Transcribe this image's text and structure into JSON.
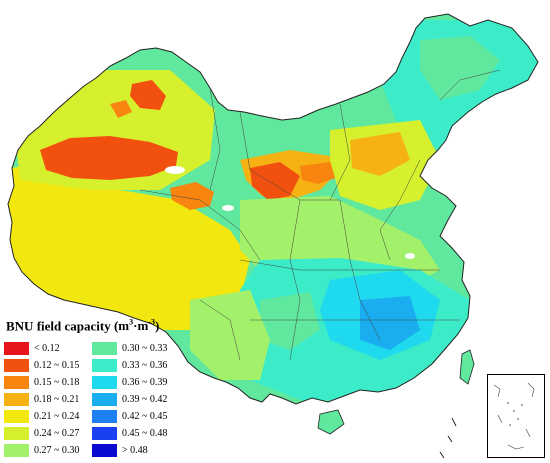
{
  "legend": {
    "title": "BNU field capacity",
    "unit_base": "(m",
    "unit_sup1": "3",
    "unit_mid": "·m",
    "unit_sup2": "-3",
    "unit_end": ")",
    "classes": [
      {
        "label": "< 0.12",
        "color": "#e8141b"
      },
      {
        "label": "0.12 ~ 0.15",
        "color": "#f2500f"
      },
      {
        "label": "0.15 ~ 0.18",
        "color": "#f7850f"
      },
      {
        "label": "0.18 ~ 0.21",
        "color": "#f5b212"
      },
      {
        "label": "0.21 ~ 0.24",
        "color": "#f2e80f"
      },
      {
        "label": "0.24 ~ 0.27",
        "color": "#d7f02e"
      },
      {
        "label": "0.27 ~ 0.30",
        "color": "#a3f06a"
      },
      {
        "label": "0.30 ~ 0.33",
        "color": "#5fe89e"
      },
      {
        "label": "0.33 ~ 0.36",
        "color": "#3cecc8"
      },
      {
        "label": "0.36 ~ 0.39",
        "color": "#1fd9ef"
      },
      {
        "label": "0.39 ~ 0.42",
        "color": "#1aaef0"
      },
      {
        "label": "0.42 ~ 0.45",
        "color": "#1c7ff2"
      },
      {
        "label": "0.45 ~ 0.48",
        "color": "#1a40f0"
      },
      {
        "label": "> 0.48",
        "color": "#0a0ad0"
      }
    ]
  }
}
